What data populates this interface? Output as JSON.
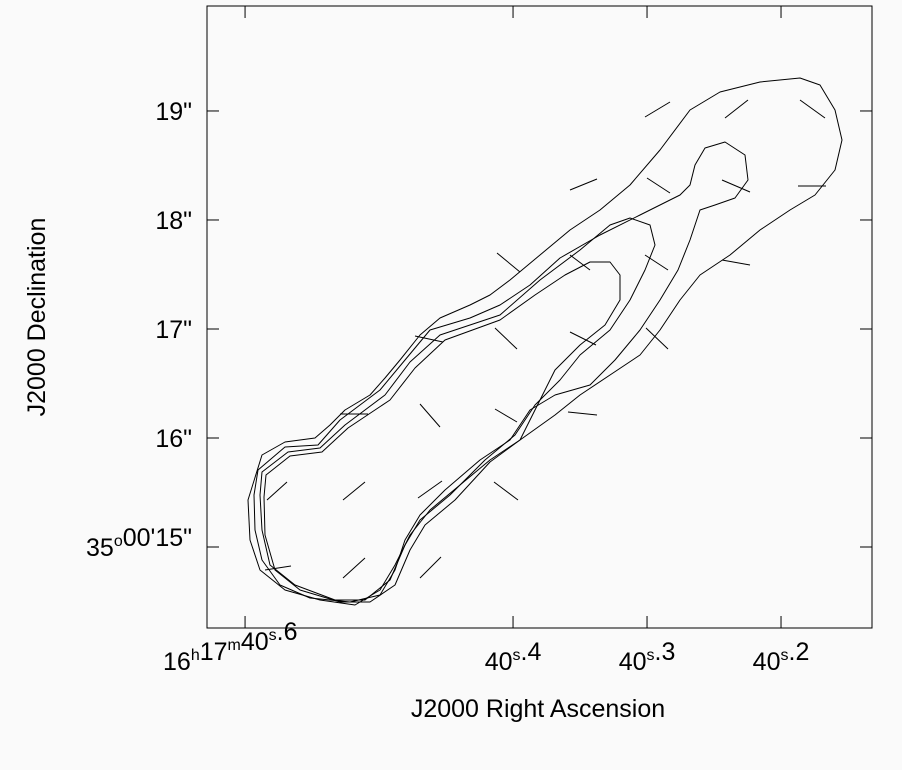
{
  "chart_data": {
    "type": "contour",
    "x_label": "J2000 Right Ascension",
    "y_label": "J2000 Declination",
    "xlim": [
      40.6284,
      40.1321
    ],
    "ylim": [
      14.257,
      19.963
    ],
    "xticks": [
      {
        "value": 40.6,
        "label": "16h17m40s.6"
      },
      {
        "value": 40.4,
        "label": "40s.4"
      },
      {
        "value": 40.3,
        "label": "40s.3"
      },
      {
        "value": 40.2,
        "label": "40s.2"
      }
    ],
    "yticks": [
      {
        "value": 15,
        "label": "35o00'15\""
      },
      {
        "value": 16,
        "label": "16\""
      },
      {
        "value": 17,
        "label": "17\""
      },
      {
        "value": 18,
        "label": "18\""
      },
      {
        "value": 19,
        "label": "19\""
      }
    ],
    "color": "#000000"
  }
}
